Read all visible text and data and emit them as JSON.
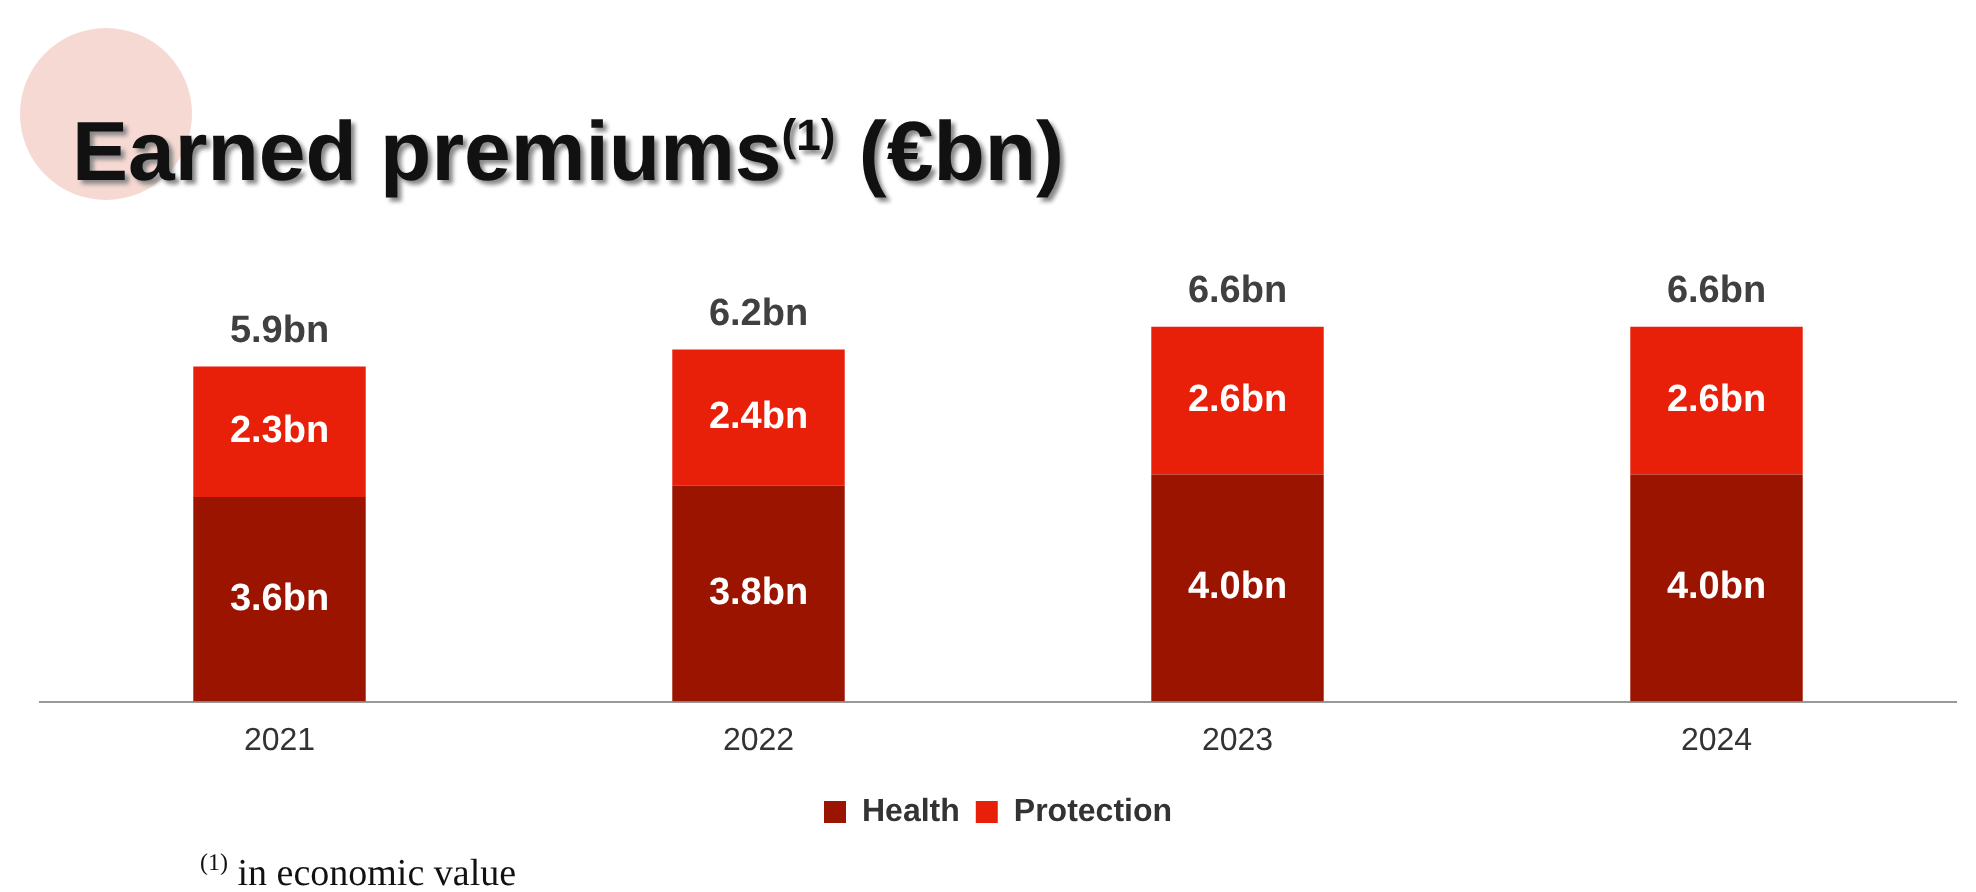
{
  "chart_data": {
    "type": "bar",
    "stacked": true,
    "title": "Earned premiums$^{(1)}$ (€bn)",
    "categories": [
      "2021",
      "2022",
      "2023",
      "2024"
    ],
    "series": [
      {
        "name": "Health",
        "color": "#9b1400",
        "values": [
          3.6,
          3.8,
          4.0,
          4.0
        ],
        "value_labels": [
          "3.6bn",
          "3.8bn",
          "4.0bn",
          "4.0bn"
        ]
      },
      {
        "name": "Protection",
        "color": "#e8200a",
        "values": [
          2.3,
          2.4,
          2.6,
          2.6
        ],
        "value_labels": [
          "2.3bn",
          "2.4bn",
          "2.6bn",
          "2.6bn"
        ]
      }
    ],
    "totals": [
      "5.9bn",
      "6.2bn",
      "6.6bn",
      "6.6bn"
    ],
    "legend": "bottom",
    "grid": false,
    "annotations": [
      "$^{(1)}$ in economic value"
    ]
  }
}
